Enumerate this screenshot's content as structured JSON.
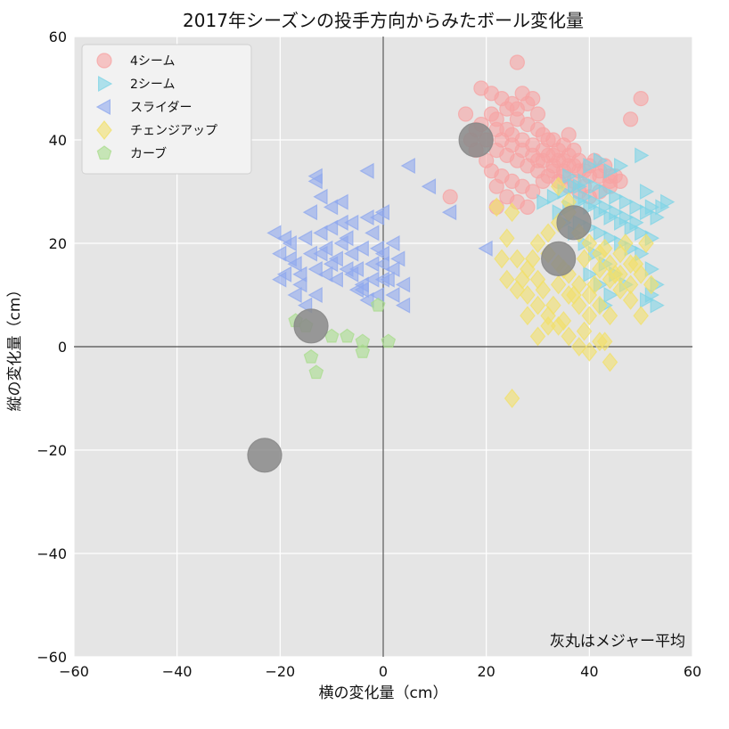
{
  "chart_data": {
    "type": "scatter",
    "title": "2017年シーズンの投手方向からみたボール変化量",
    "xlabel": "横の変化量（cm）",
    "ylabel": "縦の変化量（cm）",
    "xlim": [
      -60,
      60
    ],
    "ylim": [
      -60,
      60
    ],
    "xticks": [
      -60,
      -40,
      -20,
      0,
      20,
      40,
      60
    ],
    "yticks": [
      -60,
      -40,
      -20,
      0,
      20,
      40,
      60
    ],
    "xtick_labels": [
      "−60",
      "−40",
      "−20",
      "0",
      "20",
      "40",
      "60"
    ],
    "ytick_labels": [
      "−60",
      "−40",
      "−20",
      "0",
      "20",
      "40",
      "60"
    ],
    "grid": true,
    "background": "#e5e5e5",
    "legend_position": "top-left",
    "annotation": "灰丸はメジャー平均",
    "series": [
      {
        "name": "4シーム",
        "marker": "circle",
        "color": "#f7a3a3",
        "points": [
          [
            16,
            45
          ],
          [
            19,
            43
          ],
          [
            21,
            45
          ],
          [
            22,
            44
          ],
          [
            24,
            42
          ],
          [
            26,
            44
          ],
          [
            28,
            43
          ],
          [
            30,
            42
          ],
          [
            32,
            40
          ],
          [
            34,
            38
          ],
          [
            36,
            37
          ],
          [
            38,
            36
          ],
          [
            40,
            35
          ],
          [
            42,
            34
          ],
          [
            44,
            33
          ],
          [
            46,
            32
          ],
          [
            19,
            50
          ],
          [
            21,
            49
          ],
          [
            23,
            48
          ],
          [
            25,
            47
          ],
          [
            27,
            49
          ],
          [
            29,
            48
          ],
          [
            26,
            55
          ],
          [
            25,
            41
          ],
          [
            27,
            40
          ],
          [
            29,
            39
          ],
          [
            31,
            38
          ],
          [
            33,
            37
          ],
          [
            35,
            36
          ],
          [
            37,
            35
          ],
          [
            39,
            34
          ],
          [
            41,
            36
          ],
          [
            43,
            35
          ],
          [
            45,
            33
          ],
          [
            22,
            38
          ],
          [
            24,
            37
          ],
          [
            26,
            36
          ],
          [
            28,
            35
          ],
          [
            30,
            34
          ],
          [
            32,
            33
          ],
          [
            34,
            32
          ],
          [
            36,
            31
          ],
          [
            38,
            30
          ],
          [
            40,
            29
          ],
          [
            42,
            30
          ],
          [
            44,
            31
          ],
          [
            21,
            34
          ],
          [
            23,
            33
          ],
          [
            25,
            32
          ],
          [
            27,
            31
          ],
          [
            29,
            30
          ],
          [
            31,
            32
          ],
          [
            33,
            34
          ],
          [
            35,
            33
          ],
          [
            37,
            32
          ],
          [
            39,
            31
          ],
          [
            20,
            36
          ],
          [
            18,
            38
          ],
          [
            17,
            40
          ],
          [
            23,
            40
          ],
          [
            25,
            39
          ],
          [
            27,
            38
          ],
          [
            29,
            37
          ],
          [
            31,
            36
          ],
          [
            33,
            35
          ],
          [
            35,
            34
          ],
          [
            22,
            31
          ],
          [
            24,
            29
          ],
          [
            26,
            28
          ],
          [
            28,
            27
          ],
          [
            22,
            27
          ],
          [
            13,
            29
          ],
          [
            48,
            44
          ],
          [
            50,
            48
          ],
          [
            30,
            45
          ],
          [
            28,
            47
          ],
          [
            31,
            41
          ],
          [
            33,
            40
          ],
          [
            35,
            39
          ],
          [
            37,
            38
          ],
          [
            36,
            41
          ],
          [
            24,
            46
          ],
          [
            26,
            46
          ],
          [
            18,
            42
          ],
          [
            20,
            40
          ],
          [
            22,
            42
          ],
          [
            30,
            36
          ],
          [
            32,
            37
          ],
          [
            34,
            36
          ],
          [
            36,
            35
          ],
          [
            38,
            34
          ],
          [
            40,
            33
          ],
          [
            42,
            33
          ],
          [
            44,
            32
          ]
        ]
      },
      {
        "name": "2シーム",
        "marker": "triangle-right",
        "color": "#7fd4e6",
        "points": [
          [
            31,
            28
          ],
          [
            33,
            29
          ],
          [
            35,
            30
          ],
          [
            37,
            31
          ],
          [
            39,
            32
          ],
          [
            41,
            31
          ],
          [
            43,
            30
          ],
          [
            45,
            29
          ],
          [
            47,
            28
          ],
          [
            49,
            27
          ],
          [
            51,
            26
          ],
          [
            53,
            25
          ],
          [
            55,
            28
          ],
          [
            34,
            26
          ],
          [
            36,
            27
          ],
          [
            38,
            28
          ],
          [
            40,
            27
          ],
          [
            42,
            26
          ],
          [
            44,
            25
          ],
          [
            46,
            24
          ],
          [
            48,
            23
          ],
          [
            50,
            22
          ],
          [
            52,
            21
          ],
          [
            38,
            24
          ],
          [
            40,
            23
          ],
          [
            42,
            22
          ],
          [
            44,
            21
          ],
          [
            46,
            20
          ],
          [
            48,
            19
          ],
          [
            50,
            18
          ],
          [
            52,
            15
          ],
          [
            53,
            12
          ],
          [
            52,
            10
          ],
          [
            51,
            9
          ],
          [
            53,
            8
          ],
          [
            40,
            35
          ],
          [
            42,
            36
          ],
          [
            44,
            34
          ],
          [
            46,
            35
          ],
          [
            50,
            37
          ],
          [
            39,
            29
          ],
          [
            41,
            28
          ],
          [
            43,
            27
          ],
          [
            45,
            26
          ],
          [
            47,
            25
          ],
          [
            49,
            24
          ],
          [
            51,
            30
          ],
          [
            52,
            27
          ],
          [
            54,
            27
          ],
          [
            36,
            33
          ],
          [
            38,
            31
          ],
          [
            40,
            14
          ],
          [
            42,
            12
          ],
          [
            44,
            10
          ],
          [
            43,
            8
          ],
          [
            35,
            24
          ],
          [
            37,
            22
          ],
          [
            39,
            20
          ],
          [
            41,
            18
          ],
          [
            43,
            16
          ],
          [
            45,
            14
          ],
          [
            47,
            12
          ]
        ]
      },
      {
        "name": "スライダー",
        "marker": "triangle-left",
        "color": "#8fa8ee",
        "points": [
          [
            -21,
            22
          ],
          [
            -20,
            18
          ],
          [
            -19,
            14
          ],
          [
            -18,
            20
          ],
          [
            -17,
            16
          ],
          [
            -16,
            12
          ],
          [
            -15,
            21
          ],
          [
            -14,
            18
          ],
          [
            -13,
            15
          ],
          [
            -12,
            22
          ],
          [
            -11,
            19
          ],
          [
            -10,
            16
          ],
          [
            -9,
            13
          ],
          [
            -8,
            24
          ],
          [
            -7,
            21
          ],
          [
            -6,
            18
          ],
          [
            -5,
            15
          ],
          [
            -4,
            12
          ],
          [
            -3,
            25
          ],
          [
            -2,
            22
          ],
          [
            -1,
            19
          ],
          [
            0,
            16
          ],
          [
            1,
            13
          ],
          [
            2,
            20
          ],
          [
            3,
            17
          ],
          [
            -14,
            26
          ],
          [
            -12,
            29
          ],
          [
            -13,
            32
          ],
          [
            -10,
            27
          ],
          [
            -8,
            28
          ],
          [
            -3,
            34
          ],
          [
            -1,
            25
          ],
          [
            0,
            26
          ],
          [
            5,
            35
          ],
          [
            9,
            31
          ],
          [
            13,
            26
          ],
          [
            -15,
            8
          ],
          [
            -13,
            10
          ],
          [
            -11,
            14
          ],
          [
            -9,
            17
          ],
          [
            -7,
            15
          ],
          [
            -5,
            11
          ],
          [
            -3,
            9
          ],
          [
            -1,
            10
          ],
          [
            0,
            13
          ],
          [
            2,
            10
          ],
          [
            4,
            8
          ],
          [
            -16,
            14
          ],
          [
            -18,
            17
          ],
          [
            -19,
            21
          ],
          [
            -12,
            18
          ],
          [
            -10,
            23
          ],
          [
            -8,
            20
          ],
          [
            -6,
            24
          ],
          [
            -4,
            19
          ],
          [
            -2,
            16
          ],
          [
            0,
            18
          ],
          [
            2,
            15
          ],
          [
            4,
            12
          ],
          [
            -20,
            13
          ],
          [
            -17,
            10
          ],
          [
            20,
            19
          ],
          [
            -6,
            14
          ],
          [
            -4,
            11
          ],
          [
            -2,
            13
          ],
          [
            -13,
            33
          ]
        ]
      },
      {
        "name": "チェンジアップ",
        "marker": "diamond",
        "color": "#f2e06a",
        "points": [
          [
            22,
            27
          ],
          [
            24,
            21
          ],
          [
            26,
            17
          ],
          [
            28,
            15
          ],
          [
            30,
            13
          ],
          [
            32,
            18
          ],
          [
            34,
            16
          ],
          [
            36,
            14
          ],
          [
            38,
            12
          ],
          [
            40,
            10
          ],
          [
            42,
            8
          ],
          [
            44,
            6
          ],
          [
            46,
            18
          ],
          [
            48,
            16
          ],
          [
            50,
            14
          ],
          [
            52,
            12
          ],
          [
            30,
            20
          ],
          [
            32,
            22
          ],
          [
            34,
            24
          ],
          [
            36,
            26
          ],
          [
            38,
            22
          ],
          [
            40,
            20
          ],
          [
            42,
            18
          ],
          [
            44,
            16
          ],
          [
            46,
            14
          ],
          [
            48,
            12
          ],
          [
            28,
            10
          ],
          [
            30,
            8
          ],
          [
            32,
            6
          ],
          [
            34,
            4
          ],
          [
            36,
            2
          ],
          [
            38,
            0
          ],
          [
            40,
            -1
          ],
          [
            42,
            1
          ],
          [
            44,
            -3
          ],
          [
            24,
            13
          ],
          [
            26,
            11
          ],
          [
            28,
            6
          ],
          [
            30,
            2
          ],
          [
            32,
            4
          ],
          [
            34,
            12
          ],
          [
            36,
            10
          ],
          [
            38,
            8
          ],
          [
            40,
            6
          ],
          [
            42,
            15
          ],
          [
            44,
            13
          ],
          [
            46,
            11
          ],
          [
            48,
            9
          ],
          [
            50,
            6
          ],
          [
            25,
            -10
          ],
          [
            34,
            31
          ],
          [
            36,
            28
          ],
          [
            23,
            17
          ],
          [
            27,
            13
          ],
          [
            31,
            11
          ],
          [
            35,
            15
          ],
          [
            39,
            17
          ],
          [
            43,
            19
          ],
          [
            47,
            20
          ],
          [
            51,
            20
          ],
          [
            33,
            8
          ],
          [
            37,
            10
          ],
          [
            41,
            12
          ],
          [
            45,
            14
          ],
          [
            49,
            16
          ],
          [
            29,
            17
          ],
          [
            35,
            5
          ],
          [
            39,
            3
          ],
          [
            43,
            1
          ],
          [
            25,
            26
          ]
        ]
      },
      {
        "name": "カーブ",
        "marker": "pentagon",
        "color": "#a9dc8e",
        "points": [
          [
            -17,
            5
          ],
          [
            -14,
            -2
          ],
          [
            -13,
            -5
          ],
          [
            -10,
            2
          ],
          [
            -7,
            2
          ],
          [
            -4,
            1
          ],
          [
            -4,
            -1
          ],
          [
            -1,
            8
          ],
          [
            1,
            1
          ],
          [
            -15,
            4
          ]
        ]
      },
      {
        "name": "",
        "marker": "circle-large",
        "color": "#8a8a8a",
        "points": [
          [
            18,
            40
          ],
          [
            37,
            24
          ],
          [
            34,
            17
          ],
          [
            -14,
            4
          ],
          [
            -23,
            -21
          ]
        ]
      }
    ]
  }
}
